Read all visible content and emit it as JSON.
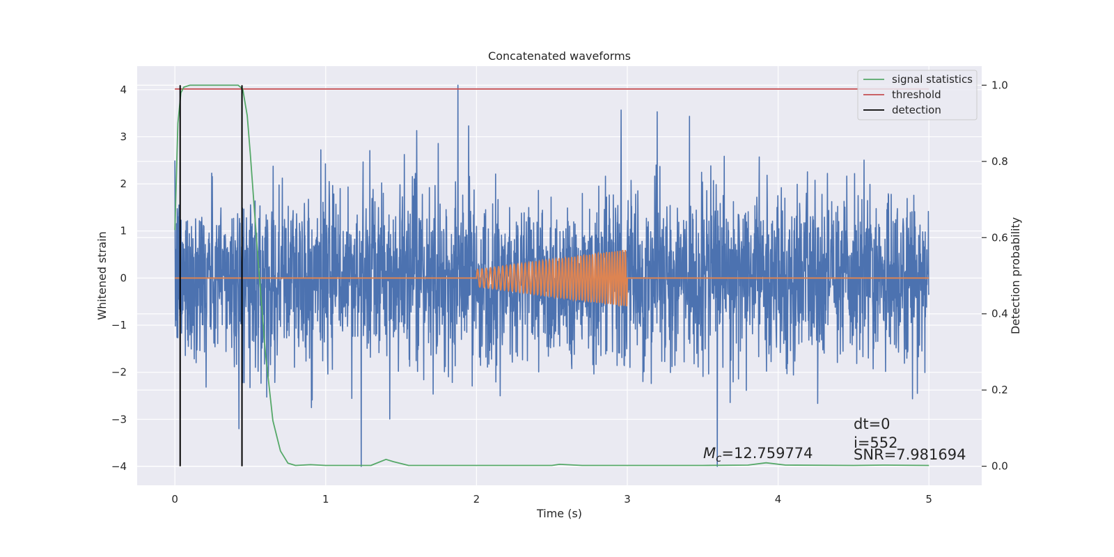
{
  "chart_data": {
    "type": "line",
    "title": "Concatenated waveforms",
    "xlabel": "Time (s)",
    "ylabel": "Whitened strain",
    "y2label": "Detection probability",
    "xlim": [
      -0.25,
      5.35
    ],
    "ylim": [
      -4.4,
      4.5
    ],
    "y2lim": [
      -0.05,
      1.05
    ],
    "xticks": [
      "0",
      "1",
      "2",
      "3",
      "4",
      "5"
    ],
    "yticks": [
      "4",
      "3",
      "2",
      "1",
      "0",
      "−1",
      "−2",
      "−3",
      "−4"
    ],
    "y2ticks": [
      "1.0",
      "0.8",
      "0.6",
      "0.4",
      "0.2",
      "0.0"
    ],
    "grid": true,
    "legend_position": "top-right",
    "legend": [
      "signal statistics",
      "threshold",
      "detection"
    ],
    "series": [
      {
        "name": "whitened strain",
        "axis": "left",
        "color": "#4c72b0",
        "description": "noise-dominated strain, 0 to 5 s, mostly within ±2.5 with spikes to about ±4",
        "x_range": [
          0,
          5
        ],
        "y_range": [
          -4.0,
          4.1
        ]
      },
      {
        "name": "injected chirp",
        "axis": "left",
        "color": "#dd8452",
        "x_range": [
          0,
          5
        ],
        "chirp_start": 2.0,
        "chirp_end": 3.0,
        "amplitude_start": 0.18,
        "amplitude_end": 0.6
      },
      {
        "name": "signal statistics",
        "axis": "right",
        "color": "#55a868",
        "x": [
          0.0,
          0.02,
          0.04,
          0.06,
          0.1,
          0.2,
          0.3,
          0.42,
          0.45,
          0.48,
          0.5,
          0.55,
          0.6,
          0.65,
          0.7,
          0.75,
          0.8,
          0.9,
          1.0,
          1.3,
          1.4,
          1.45,
          1.55,
          2.0,
          2.5,
          2.55,
          2.7,
          3.0,
          3.5,
          3.8,
          3.92,
          4.05,
          4.5,
          4.7,
          5.0
        ],
        "y": [
          0.62,
          0.9,
          0.98,
          0.995,
          1.0,
          1.0,
          1.0,
          1.0,
          0.99,
          0.92,
          0.82,
          0.55,
          0.3,
          0.12,
          0.04,
          0.008,
          0.002,
          0.004,
          0.002,
          0.002,
          0.018,
          0.012,
          0.002,
          0.002,
          0.002,
          0.005,
          0.002,
          0.002,
          0.002,
          0.003,
          0.009,
          0.003,
          0.002,
          0.003,
          0.002
        ]
      },
      {
        "name": "threshold",
        "axis": "right",
        "color": "#c44e52",
        "x": [
          0.0,
          5.0
        ],
        "y": [
          0.99,
          0.99
        ]
      },
      {
        "name": "detection",
        "axis": "right",
        "color": "#000000",
        "x": [
          0.035,
          0.445
        ],
        "y_range": [
          0.0,
          1.0
        ]
      }
    ],
    "annotations": {
      "mc_symbol": "M",
      "mc_subscript": "c",
      "mc_value": "=12.759774",
      "dt": "dt=0",
      "i": "i=552",
      "snr": "SNR=7.981694"
    }
  }
}
